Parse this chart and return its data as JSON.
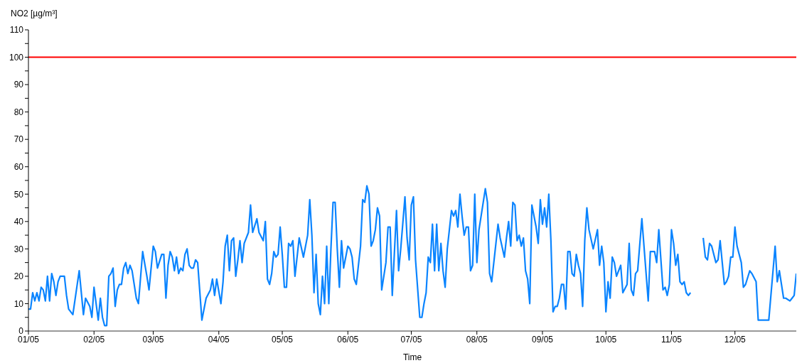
{
  "chart_data": {
    "type": "line",
    "xlabel": "Time",
    "ylabel": "NO2 [µg/m³]",
    "xlim": [
      "2005-01-01",
      "2005-12-30"
    ],
    "xticks": [
      {
        "value": "2005-01-01",
        "label": "01/05"
      },
      {
        "value": "2005-02-01",
        "label": "02/05"
      },
      {
        "value": "2005-03-01",
        "label": "03/05"
      },
      {
        "value": "2005-04-01",
        "label": "04/05"
      },
      {
        "value": "2005-05-01",
        "label": "05/05"
      },
      {
        "value": "2005-06-01",
        "label": "06/05"
      },
      {
        "value": "2005-07-01",
        "label": "07/05"
      },
      {
        "value": "2005-08-01",
        "label": "08/05"
      },
      {
        "value": "2005-09-01",
        "label": "09/05"
      },
      {
        "value": "2005-10-01",
        "label": "10/05"
      },
      {
        "value": "2005-11-01",
        "label": "11/05"
      },
      {
        "value": "2005-12-01",
        "label": "12/05"
      }
    ],
    "ylim": [
      0,
      110
    ],
    "yticks": [
      0,
      {
        "value": 5,
        "label": null
      },
      10,
      {
        "value": 15,
        "label": null
      },
      20,
      {
        "value": 25,
        "label": null
      },
      30,
      {
        "value": 35,
        "label": null
      },
      40,
      {
        "value": 45,
        "label": null
      },
      50,
      {
        "value": 55,
        "label": null
      },
      60,
      {
        "value": 65,
        "label": null
      },
      70,
      {
        "value": 75,
        "label": null
      },
      80,
      {
        "value": 85,
        "label": null
      },
      90,
      {
        "value": 95,
        "label": null
      },
      100,
      {
        "value": 105,
        "label": null
      },
      110
    ],
    "grid": false,
    "legend": false,
    "marker": "none",
    "line_style": "solid",
    "ref_lines": [
      {
        "axis": "y",
        "value": 100,
        "color": "#ff0000"
      }
    ],
    "series": [
      {
        "color": "#0a84ff",
        "x": [
          "2005-01-01",
          "2005-01-02",
          "2005-01-03",
          "2005-01-04",
          "2005-01-05",
          "2005-01-06",
          "2005-01-07",
          "2005-01-08",
          "2005-01-09",
          "2005-01-10",
          "2005-01-11",
          "2005-01-12",
          "2005-01-13",
          "2005-01-14",
          "2005-01-15",
          "2005-01-16",
          "2005-01-18",
          "2005-01-19",
          "2005-01-20",
          "2005-01-22",
          "2005-01-25",
          "2005-01-27",
          "2005-01-28",
          "2005-01-30",
          "2005-01-31",
          "2005-02-01",
          "2005-02-03",
          "2005-02-04",
          "2005-02-05",
          "2005-02-06",
          "2005-02-07",
          "2005-02-08",
          "2005-02-09",
          "2005-02-10",
          "2005-02-11",
          "2005-02-12",
          "2005-02-13",
          "2005-02-14",
          "2005-02-15",
          "2005-02-16",
          "2005-02-17",
          "2005-02-18",
          "2005-02-19",
          "2005-02-21",
          "2005-02-22",
          "2005-02-24",
          "2005-02-26",
          "2005-02-27",
          "2005-03-01",
          "2005-03-02",
          "2005-03-03",
          "2005-03-05",
          "2005-03-06",
          "2005-03-07",
          "2005-03-08",
          "2005-03-09",
          "2005-03-10",
          "2005-03-11",
          "2005-03-12",
          "2005-03-13",
          "2005-03-14",
          "2005-03-15",
          "2005-03-16",
          "2005-03-17",
          "2005-03-18",
          "2005-03-19",
          "2005-03-20",
          "2005-03-21",
          "2005-03-22",
          "2005-03-24",
          "2005-03-26",
          "2005-03-28",
          "2005-03-29",
          "2005-03-30",
          "2005-03-31",
          "2005-04-02",
          "2005-04-03",
          "2005-04-04",
          "2005-04-05",
          "2005-04-06",
          "2005-04-07",
          "2005-04-08",
          "2005-04-09",
          "2005-04-10",
          "2005-04-11",
          "2005-04-12",
          "2005-04-13",
          "2005-04-15",
          "2005-04-16",
          "2005-04-17",
          "2005-04-19",
          "2005-04-20",
          "2005-04-22",
          "2005-04-23",
          "2005-04-24",
          "2005-04-25",
          "2005-04-26",
          "2005-04-27",
          "2005-04-28",
          "2005-04-29",
          "2005-04-30",
          "2005-05-01",
          "2005-05-02",
          "2005-05-03",
          "2005-05-04",
          "2005-05-05",
          "2005-05-06",
          "2005-05-07",
          "2005-05-09",
          "2005-05-11",
          "2005-05-13",
          "2005-05-14",
          "2005-05-15",
          "2005-05-16",
          "2005-05-17",
          "2005-05-18",
          "2005-05-19",
          "2005-05-20",
          "2005-05-21",
          "2005-05-22",
          "2005-05-23",
          "2005-05-24",
          "2005-05-25",
          "2005-05-26",
          "2005-05-27",
          "2005-05-28",
          "2005-05-29",
          "2005-05-30",
          "2005-05-31",
          "2005-06-01",
          "2005-06-02",
          "2005-06-03",
          "2005-06-04",
          "2005-06-05",
          "2005-06-06",
          "2005-06-07",
          "2005-06-08",
          "2005-06-09",
          "2005-06-10",
          "2005-06-11",
          "2005-06-12",
          "2005-06-13",
          "2005-06-14",
          "2005-06-15",
          "2005-06-16",
          "2005-06-17",
          "2005-06-19",
          "2005-06-20",
          "2005-06-21",
          "2005-06-22",
          "2005-06-24",
          "2005-06-25",
          "2005-06-26",
          "2005-06-28",
          "2005-06-29",
          "2005-06-30",
          "2005-07-01",
          "2005-07-02",
          "2005-07-03",
          "2005-07-05",
          "2005-07-06",
          "2005-07-07",
          "2005-07-08",
          "2005-07-09",
          "2005-07-10",
          "2005-07-11",
          "2005-07-12",
          "2005-07-13",
          "2005-07-14",
          "2005-07-15",
          "2005-07-16",
          "2005-07-17",
          "2005-07-18",
          "2005-07-20",
          "2005-07-21",
          "2005-07-22",
          "2005-07-23",
          "2005-07-24",
          "2005-07-25",
          "2005-07-26",
          "2005-07-27",
          "2005-07-28",
          "2005-07-29",
          "2005-07-30",
          "2005-07-31",
          "2005-08-01",
          "2005-08-02",
          "2005-08-04",
          "2005-08-05",
          "2005-08-06",
          "2005-08-07",
          "2005-08-08",
          "2005-08-10",
          "2005-08-11",
          "2005-08-12",
          "2005-08-14",
          "2005-08-15",
          "2005-08-16",
          "2005-08-17",
          "2005-08-18",
          "2005-08-19",
          "2005-08-20",
          "2005-08-21",
          "2005-08-22",
          "2005-08-23",
          "2005-08-24",
          "2005-08-25",
          "2005-08-26",
          "2005-08-27",
          "2005-08-29",
          "2005-08-30",
          "2005-08-31",
          "2005-09-01",
          "2005-09-02",
          "2005-09-03",
          "2005-09-04",
          "2005-09-05",
          "2005-09-06",
          "2005-09-07",
          "2005-09-08",
          "2005-09-09",
          "2005-09-10",
          "2005-09-11",
          "2005-09-12",
          "2005-09-13",
          "2005-09-14",
          "2005-09-15",
          "2005-09-16",
          "2005-09-17",
          "2005-09-18",
          "2005-09-19",
          "2005-09-20",
          "2005-09-21",
          "2005-09-22",
          "2005-09-23",
          "2005-09-25",
          "2005-09-27",
          "2005-09-28",
          "2005-09-29",
          "2005-09-30",
          "2005-10-01",
          "2005-10-02",
          "2005-10-03",
          "2005-10-04",
          "2005-10-05",
          "2005-10-06",
          "2005-10-08",
          "2005-10-09",
          "2005-10-11",
          "2005-10-12",
          "2005-10-13",
          "2005-10-14",
          "2005-10-15",
          "2005-10-16",
          "2005-10-18",
          "2005-10-21",
          "2005-10-22",
          "2005-10-24",
          "2005-10-25",
          "2005-10-26",
          "2005-10-28",
          "2005-10-29",
          "2005-10-30",
          "2005-10-31",
          "2005-11-01",
          "2005-11-02",
          "2005-11-03",
          "2005-11-04",
          "2005-11-05",
          "2005-11-06",
          "2005-11-07",
          "2005-11-08",
          "2005-11-09",
          "2005-11-10",
          "2005-11-11",
          "2005-11-16",
          "2005-11-17",
          "2005-11-18",
          "2005-11-19",
          "2005-11-20",
          "2005-11-22",
          "2005-11-23",
          "2005-11-24",
          "2005-11-26",
          "2005-11-27",
          "2005-11-28",
          "2005-11-29",
          "2005-11-30",
          "2005-12-01",
          "2005-12-02",
          "2005-12-04",
          "2005-12-05",
          "2005-12-06",
          "2005-12-08",
          "2005-12-09",
          "2005-12-11",
          "2005-12-12",
          "2005-12-13",
          "2005-12-14",
          "2005-12-15",
          "2005-12-16",
          "2005-12-17",
          "2005-12-20",
          "2005-12-21",
          "2005-12-22",
          "2005-12-24",
          "2005-12-25",
          "2005-12-27",
          "2005-12-28",
          "2005-12-29",
          "2005-12-30"
        ],
        "values": [
          8,
          8,
          14,
          11,
          14,
          11,
          16,
          15,
          11,
          20,
          11,
          21,
          18,
          13,
          18,
          20,
          20,
          13,
          8,
          6,
          22,
          6,
          12,
          9,
          5,
          16,
          4,
          12,
          5,
          2,
          2,
          20,
          21,
          23,
          9,
          15,
          17,
          17,
          23,
          25,
          21,
          24,
          22,
          12,
          10,
          29,
          20,
          15,
          31,
          29,
          23,
          28,
          28,
          12,
          24,
          29,
          27,
          22,
          27,
          21,
          23,
          22,
          28,
          30,
          24,
          23,
          23,
          26,
          25,
          4,
          12,
          15,
          19,
          13,
          19,
          10,
          18,
          31,
          35,
          22,
          33,
          34,
          20,
          26,
          33,
          25,
          32,
          36,
          46,
          36,
          41,
          36,
          33,
          40,
          19,
          17,
          21,
          29,
          27,
          28,
          38,
          28,
          16,
          16,
          32,
          31,
          33,
          20,
          34,
          27,
          35,
          48,
          35,
          14,
          28,
          10,
          6,
          20,
          10,
          31,
          10,
          30,
          47,
          47,
          30,
          16,
          33,
          23,
          27,
          31,
          30,
          27,
          19,
          17,
          24,
          31,
          48,
          47,
          53,
          50,
          31,
          33,
          37,
          45,
          42,
          15,
          25,
          38,
          38,
          13,
          44,
          22,
          30,
          49,
          34,
          26,
          46,
          49,
          26,
          5,
          5,
          10,
          14,
          27,
          25,
          39,
          22,
          39,
          22,
          32,
          22,
          16,
          30,
          44,
          42,
          44,
          38,
          50,
          42,
          35,
          38,
          38,
          22,
          24,
          50,
          25,
          37,
          47,
          52,
          47,
          21,
          18,
          32,
          39,
          34,
          27,
          34,
          40,
          31,
          47,
          46,
          33,
          35,
          31,
          34,
          22,
          19,
          10,
          46,
          38,
          32,
          48,
          39,
          45,
          38,
          50,
          33,
          7,
          9,
          9,
          12,
          17,
          17,
          8,
          29,
          29,
          21,
          20,
          28,
          24,
          21,
          9,
          33,
          45,
          37,
          30,
          37,
          24,
          31,
          25,
          7,
          18,
          12,
          27,
          25,
          20,
          24,
          14,
          17,
          32,
          15,
          13,
          21,
          22,
          41,
          11,
          29,
          29,
          25,
          37,
          15,
          16,
          13,
          17,
          37,
          32,
          24,
          28,
          18,
          17,
          18,
          14,
          13,
          14,
          null,
          34,
          27,
          26,
          32,
          31,
          25,
          26,
          33,
          17,
          18,
          20,
          27,
          27,
          38,
          31,
          25,
          16,
          17,
          22,
          21,
          18,
          4,
          4,
          4,
          4,
          4,
          4,
          31,
          18,
          22,
          12,
          12,
          11,
          12,
          13,
          21
        ]
      }
    ]
  }
}
